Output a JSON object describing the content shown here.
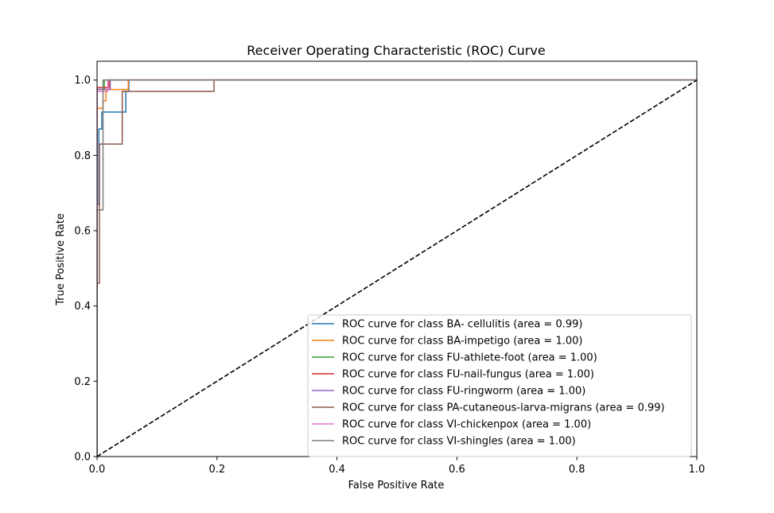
{
  "chart_data": {
    "type": "line",
    "title": "Receiver Operating Characteristic (ROC) Curve",
    "xlabel": "False Positive Rate",
    "ylabel": "True Positive Rate",
    "xlim": [
      0.0,
      1.0
    ],
    "ylim": [
      0.0,
      1.05
    ],
    "xticks": [
      {
        "value": 0.0,
        "label": "0.0"
      },
      {
        "value": 0.2,
        "label": "0.2"
      },
      {
        "value": 0.4,
        "label": "0.4"
      },
      {
        "value": 0.6,
        "label": "0.6"
      },
      {
        "value": 0.8,
        "label": "0.8"
      },
      {
        "value": 1.0,
        "label": "1.0"
      }
    ],
    "yticks": [
      {
        "value": 0.0,
        "label": "0.0"
      },
      {
        "value": 0.2,
        "label": "0.2"
      },
      {
        "value": 0.4,
        "label": "0.4"
      },
      {
        "value": 0.6,
        "label": "0.6"
      },
      {
        "value": 0.8,
        "label": "0.8"
      },
      {
        "value": 1.0,
        "label": "1.0"
      }
    ],
    "grid": false,
    "legend_position": "lower-right",
    "series": [
      {
        "name": "ROC curve for class BA- cellulitis (area = 0.99)",
        "color": "#1f77b4",
        "points": [
          [
            0.0,
            0.0
          ],
          [
            0.0,
            0.67
          ],
          [
            0.003,
            0.67
          ],
          [
            0.003,
            0.87
          ],
          [
            0.008,
            0.87
          ],
          [
            0.008,
            0.915
          ],
          [
            0.048,
            0.915
          ],
          [
            0.048,
            0.97
          ],
          [
            0.053,
            0.97
          ],
          [
            0.053,
            1.0
          ],
          [
            1.0,
            1.0
          ]
        ]
      },
      {
        "name": "ROC curve for class BA-impetigo (area = 1.00)",
        "color": "#ff7f0e",
        "points": [
          [
            0.0,
            0.0
          ],
          [
            0.0,
            0.925
          ],
          [
            0.01,
            0.925
          ],
          [
            0.01,
            0.945
          ],
          [
            0.015,
            0.945
          ],
          [
            0.015,
            0.975
          ],
          [
            0.052,
            0.975
          ],
          [
            0.052,
            1.0
          ],
          [
            1.0,
            1.0
          ]
        ]
      },
      {
        "name": "ROC curve for class FU-athlete-foot (area = 1.00)",
        "color": "#2ca02c",
        "points": [
          [
            0.0,
            0.0
          ],
          [
            0.0,
            0.975
          ],
          [
            0.012,
            0.975
          ],
          [
            0.012,
            1.0
          ],
          [
            1.0,
            1.0
          ]
        ]
      },
      {
        "name": "ROC curve for class FU-nail-fungus (area = 1.00)",
        "color": "#d62728",
        "points": [
          [
            0.0,
            0.0
          ],
          [
            0.0,
            0.98
          ],
          [
            0.02,
            0.98
          ],
          [
            0.02,
            1.0
          ],
          [
            1.0,
            1.0
          ]
        ]
      },
      {
        "name": "ROC curve for class FU-ringworm (area = 1.00)",
        "color": "#9467bd",
        "points": [
          [
            0.0,
            0.0
          ],
          [
            0.0,
            0.975
          ],
          [
            0.022,
            0.975
          ],
          [
            0.022,
            1.0
          ],
          [
            1.0,
            1.0
          ]
        ]
      },
      {
        "name": "ROC curve for class PA-cutaneous-larva-migrans (area = 0.99)",
        "color": "#8c564b",
        "points": [
          [
            0.0,
            0.0
          ],
          [
            0.0,
            0.46
          ],
          [
            0.004,
            0.46
          ],
          [
            0.004,
            0.83
          ],
          [
            0.042,
            0.83
          ],
          [
            0.042,
            0.97
          ],
          [
            0.195,
            0.97
          ],
          [
            0.195,
            1.0
          ],
          [
            1.0,
            1.0
          ]
        ]
      },
      {
        "name": "ROC curve for class VI-chickenpox (area = 1.00)",
        "color": "#e377c2",
        "points": [
          [
            0.0,
            0.0
          ],
          [
            0.0,
            0.97
          ],
          [
            0.018,
            0.97
          ],
          [
            0.018,
            1.0
          ],
          [
            1.0,
            1.0
          ]
        ]
      },
      {
        "name": "ROC curve for class VI-shingles (area = 1.00)",
        "color": "#7f7f7f",
        "points": [
          [
            0.0,
            0.0
          ],
          [
            0.0,
            0.655
          ],
          [
            0.01,
            0.655
          ],
          [
            0.01,
            1.0
          ],
          [
            1.0,
            1.0
          ]
        ]
      }
    ],
    "reference_line": {
      "style": "dashed",
      "color": "#000000",
      "points": [
        [
          0.0,
          0.0
        ],
        [
          1.0,
          1.0
        ]
      ]
    }
  }
}
